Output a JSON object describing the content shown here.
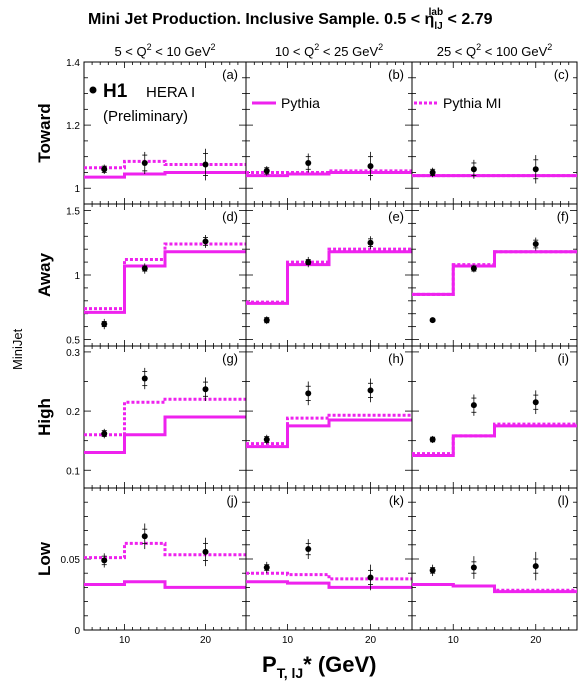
{
  "figure": {
    "title_main": "Mini Jet Production.  Inclusive Sample.  0.5 < η",
    "title_sub": "lJ",
    "title_sup": "lab",
    "title_end": " < 2.79",
    "columns": [
      {
        "pre": "5 < Q",
        "sup": "2",
        "post": " < 10 GeV",
        "sup2": "2"
      },
      {
        "pre": "10 < Q",
        "sup": "2",
        "post": " < 25 GeV",
        "sup2": "2"
      },
      {
        "pre": "25 < Q",
        "sup": "2",
        "post": " < 100 GeV",
        "sup2": "2"
      }
    ],
    "rows": [
      "Toward",
      "Away",
      "High",
      "Low"
    ],
    "y_axis_partial": "MiniJet",
    "x_axis": {
      "main": "P",
      "sub": "T, lJ",
      "post": "* (GeV)"
    },
    "legend": {
      "h1": "H1",
      "hera": "HERA I",
      "prelim": "(Preliminary)",
      "pythia": "Pythia",
      "pythia_mi": "Pythia MI"
    },
    "colors": {
      "pythia": "#ee22ee",
      "data": "#000000"
    }
  },
  "chart_data": [
    {
      "panel": "(a)",
      "row": "Toward",
      "col": 0,
      "type": "line",
      "ylim": [
        0.95,
        1.4
      ],
      "yticks": [
        "1",
        "1.2",
        "1.4"
      ],
      "ytick_values": [
        1.0,
        1.2,
        1.4
      ],
      "xlim": [
        5,
        25
      ],
      "xticks": [
        "10",
        "20"
      ],
      "xtick_values": [
        10,
        20
      ],
      "data": {
        "x": [
          7.5,
          12.5,
          20
        ],
        "y": [
          1.06,
          1.08,
          1.075
        ],
        "err_stat": [
          0.01,
          0.025,
          0.035
        ],
        "err_tot": [
          0.015,
          0.035,
          0.05
        ]
      },
      "pythia": {
        "edges": [
          5,
          10,
          15,
          25
        ],
        "values": [
          1.035,
          1.045,
          1.05
        ]
      },
      "pythia_mi": {
        "edges": [
          5,
          10,
          15,
          25
        ],
        "values": [
          1.065,
          1.085,
          1.075
        ]
      }
    },
    {
      "panel": "(b)",
      "row": "Toward",
      "col": 1,
      "type": "line",
      "ylim": [
        0.95,
        1.4
      ],
      "xlim": [
        5,
        25
      ],
      "xticks": [
        "10",
        "20"
      ],
      "xtick_values": [
        10,
        20
      ],
      "data": {
        "x": [
          7.5,
          12.5,
          20
        ],
        "y": [
          1.055,
          1.08,
          1.07
        ],
        "err_stat": [
          0.01,
          0.02,
          0.03
        ],
        "err_tot": [
          0.015,
          0.03,
          0.045
        ]
      },
      "pythia": {
        "edges": [
          5,
          10,
          15,
          25
        ],
        "values": [
          1.04,
          1.045,
          1.05
        ]
      },
      "pythia_mi": {
        "edges": [
          5,
          10,
          15,
          25
        ],
        "values": [
          1.05,
          1.05,
          1.055
        ]
      }
    },
    {
      "panel": "(c)",
      "row": "Toward",
      "col": 2,
      "type": "line",
      "ylim": [
        0.95,
        1.4
      ],
      "xlim": [
        5,
        25
      ],
      "xticks": [
        "10",
        "20"
      ],
      "xtick_values": [
        10,
        20
      ],
      "data": {
        "x": [
          7.5,
          12.5,
          20
        ],
        "y": [
          1.05,
          1.06,
          1.06
        ],
        "err_stat": [
          0.01,
          0.02,
          0.03
        ],
        "err_tot": [
          0.015,
          0.03,
          0.045
        ]
      },
      "pythia": {
        "edges": [
          5,
          10,
          15,
          25
        ],
        "values": [
          1.04,
          1.04,
          1.04
        ]
      },
      "pythia_mi": {
        "edges": [
          5,
          10,
          15,
          25
        ],
        "values": [
          1.04,
          1.04,
          1.04
        ]
      }
    },
    {
      "panel": "(d)",
      "row": "Away",
      "col": 0,
      "type": "line",
      "ylim": [
        0.45,
        1.55
      ],
      "yticks": [
        "0.5",
        "1",
        "1.5"
      ],
      "ytick_values": [
        0.5,
        1.0,
        1.5
      ],
      "xlim": [
        5,
        25
      ],
      "xticks": [
        "10",
        "20"
      ],
      "xtick_values": [
        10,
        20
      ],
      "data": {
        "x": [
          7.5,
          12.5,
          20
        ],
        "y": [
          0.62,
          1.05,
          1.26
        ],
        "err_stat": [
          0.02,
          0.02,
          0.03
        ],
        "err_tot": [
          0.04,
          0.04,
          0.05
        ]
      },
      "pythia": {
        "edges": [
          5,
          10,
          15,
          25
        ],
        "values": [
          0.71,
          1.07,
          1.18
        ]
      },
      "pythia_mi": {
        "edges": [
          5,
          10,
          15,
          25
        ],
        "values": [
          0.74,
          1.12,
          1.24
        ]
      }
    },
    {
      "panel": "(e)",
      "row": "Away",
      "col": 1,
      "type": "line",
      "ylim": [
        0.45,
        1.55
      ],
      "xlim": [
        5,
        25
      ],
      "xticks": [
        "10",
        "20"
      ],
      "xtick_values": [
        10,
        20
      ],
      "data": {
        "x": [
          7.5,
          12.5,
          20
        ],
        "y": [
          0.65,
          1.1,
          1.25
        ],
        "err_stat": [
          0.02,
          0.02,
          0.03
        ],
        "err_tot": [
          0.03,
          0.04,
          0.05
        ]
      },
      "pythia": {
        "edges": [
          5,
          10,
          15,
          25
        ],
        "values": [
          0.78,
          1.08,
          1.18
        ]
      },
      "pythia_mi": {
        "edges": [
          5,
          10,
          15,
          25
        ],
        "values": [
          0.79,
          1.1,
          1.2
        ]
      }
    },
    {
      "panel": "(f)",
      "row": "Away",
      "col": 2,
      "type": "line",
      "ylim": [
        0.45,
        1.55
      ],
      "xlim": [
        5,
        25
      ],
      "xticks": [
        "10",
        "20"
      ],
      "xtick_values": [
        10,
        20
      ],
      "data": {
        "x": [
          7.5,
          12.5,
          20
        ],
        "y": [
          0.65,
          1.05,
          1.24
        ],
        "err_stat": [
          0.01,
          0.02,
          0.03
        ],
        "err_tot": [
          0.015,
          0.03,
          0.05
        ]
      },
      "pythia": {
        "edges": [
          5,
          10,
          15,
          25
        ],
        "values": [
          0.85,
          1.07,
          1.18
        ]
      },
      "pythia_mi": {
        "edges": [
          5,
          10,
          15,
          25
        ],
        "values": [
          0.85,
          1.08,
          1.18
        ]
      }
    },
    {
      "panel": "(g)",
      "row": "High",
      "col": 0,
      "type": "line",
      "ylim": [
        0.07,
        0.31
      ],
      "yticks": [
        "0.1",
        "0.2",
        "0.3"
      ],
      "ytick_values": [
        0.1,
        0.2,
        0.3
      ],
      "xlim": [
        5,
        25
      ],
      "xticks": [
        "10",
        "20"
      ],
      "xtick_values": [
        10,
        20
      ],
      "data": {
        "x": [
          7.5,
          12.5,
          20
        ],
        "y": [
          0.162,
          0.255,
          0.237
        ],
        "err_stat": [
          0.005,
          0.012,
          0.012
        ],
        "err_tot": [
          0.008,
          0.018,
          0.02
        ]
      },
      "pythia": {
        "edges": [
          5,
          10,
          15,
          25
        ],
        "values": [
          0.13,
          0.16,
          0.19
        ]
      },
      "pythia_mi": {
        "edges": [
          5,
          10,
          15,
          25
        ],
        "values": [
          0.16,
          0.215,
          0.22
        ]
      }
    },
    {
      "panel": "(h)",
      "row": "High",
      "col": 1,
      "type": "line",
      "ylim": [
        0.07,
        0.31
      ],
      "xlim": [
        5,
        25
      ],
      "xticks": [
        "10",
        "20"
      ],
      "xtick_values": [
        10,
        20
      ],
      "data": {
        "x": [
          7.5,
          12.5,
          20
        ],
        "y": [
          0.152,
          0.23,
          0.235
        ],
        "err_stat": [
          0.005,
          0.012,
          0.012
        ],
        "err_tot": [
          0.008,
          0.02,
          0.02
        ]
      },
      "pythia": {
        "edges": [
          5,
          10,
          15,
          25
        ],
        "values": [
          0.14,
          0.175,
          0.185
        ]
      },
      "pythia_mi": {
        "edges": [
          5,
          10,
          15,
          25
        ],
        "values": [
          0.145,
          0.188,
          0.193
        ]
      }
    },
    {
      "panel": "(i)",
      "row": "High",
      "col": 2,
      "type": "line",
      "ylim": [
        0.07,
        0.31
      ],
      "xlim": [
        5,
        25
      ],
      "xticks": [
        "10",
        "20"
      ],
      "xtick_values": [
        10,
        20
      ],
      "data": {
        "x": [
          7.5,
          12.5,
          20
        ],
        "y": [
          0.152,
          0.21,
          0.215
        ],
        "err_stat": [
          0.004,
          0.012,
          0.012
        ],
        "err_tot": [
          0.006,
          0.018,
          0.02
        ]
      },
      "pythia": {
        "edges": [
          5,
          10,
          15,
          25
        ],
        "values": [
          0.125,
          0.158,
          0.175
        ]
      },
      "pythia_mi": {
        "edges": [
          5,
          10,
          15,
          25
        ],
        "values": [
          0.128,
          0.158,
          0.178
        ]
      }
    },
    {
      "panel": "(j)",
      "row": "Low",
      "col": 0,
      "type": "line",
      "ylim": [
        0.0,
        0.1
      ],
      "yticks": [
        "0",
        "0.05"
      ],
      "ytick_values": [
        0.0,
        0.05
      ],
      "xlim": [
        5,
        25
      ],
      "xticks": [
        "10",
        "20"
      ],
      "xtick_values": [
        10,
        20
      ],
      "data": {
        "x": [
          7.5,
          12.5,
          20
        ],
        "y": [
          0.049,
          0.066,
          0.055
        ],
        "err_stat": [
          0.003,
          0.005,
          0.006
        ],
        "err_tot": [
          0.005,
          0.009,
          0.01
        ]
      },
      "pythia": {
        "edges": [
          5,
          10,
          15,
          25
        ],
        "values": [
          0.032,
          0.034,
          0.03
        ]
      },
      "pythia_mi": {
        "edges": [
          5,
          10,
          15,
          25
        ],
        "values": [
          0.051,
          0.061,
          0.053
        ]
      }
    },
    {
      "panel": "(k)",
      "row": "Low",
      "col": 1,
      "type": "line",
      "ylim": [
        0.0,
        0.1
      ],
      "xlim": [
        5,
        25
      ],
      "xticks": [
        "10",
        "20"
      ],
      "xtick_values": [
        10,
        20
      ],
      "data": {
        "x": [
          7.5,
          12.5,
          20
        ],
        "y": [
          0.044,
          0.057,
          0.037
        ],
        "err_stat": [
          0.002,
          0.004,
          0.005
        ],
        "err_tot": [
          0.004,
          0.007,
          0.009
        ]
      },
      "pythia": {
        "edges": [
          5,
          10,
          15,
          25
        ],
        "values": [
          0.034,
          0.033,
          0.03
        ]
      },
      "pythia_mi": {
        "edges": [
          5,
          10,
          15,
          25
        ],
        "values": [
          0.04,
          0.039,
          0.036
        ]
      }
    },
    {
      "panel": "(l)",
      "row": "Low",
      "col": 2,
      "type": "line",
      "ylim": [
        0.0,
        0.1
      ],
      "xlim": [
        5,
        25
      ],
      "xticks": [
        "10",
        "20"
      ],
      "xtick_values": [
        10,
        20
      ],
      "data": {
        "x": [
          7.5,
          12.5,
          20
        ],
        "y": [
          0.042,
          0.044,
          0.045
        ],
        "err_stat": [
          0.002,
          0.004,
          0.005
        ],
        "err_tot": [
          0.004,
          0.008,
          0.01
        ]
      },
      "pythia": {
        "edges": [
          5,
          10,
          15,
          25
        ],
        "values": [
          0.032,
          0.031,
          0.027
        ]
      },
      "pythia_mi": {
        "edges": [
          5,
          10,
          15,
          25
        ],
        "values": [
          0.032,
          0.031,
          0.028
        ]
      }
    }
  ]
}
